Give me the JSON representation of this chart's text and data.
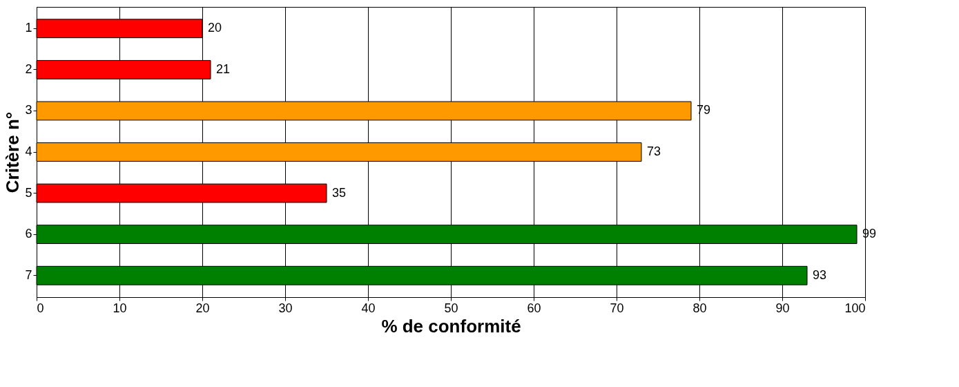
{
  "chart_data": {
    "type": "bar",
    "orientation": "horizontal",
    "xlabel": "% de conformité",
    "ylabel": "Critère n°",
    "categories": [
      "1",
      "2",
      "3",
      "4",
      "5",
      "6",
      "7"
    ],
    "values": [
      20,
      21,
      79,
      73,
      35,
      99,
      93
    ],
    "colors": [
      "#ff0000",
      "#ff0000",
      "#ff9900",
      "#ff9900",
      "#ff0000",
      "#008000",
      "#008000"
    ],
    "xlim": [
      0,
      100
    ],
    "xticks": [
      0,
      10,
      20,
      30,
      40,
      50,
      60,
      70,
      80,
      90,
      100
    ],
    "grid": "x",
    "data_labels": true
  }
}
